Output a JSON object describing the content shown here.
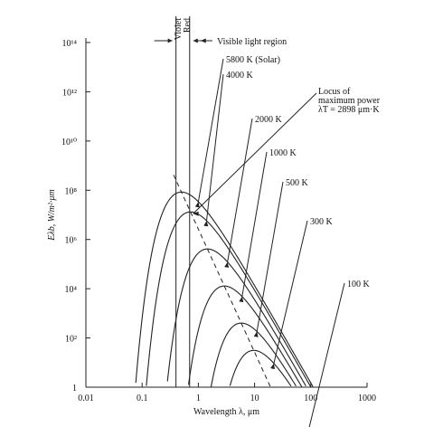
{
  "chart_data": {
    "type": "line",
    "title": "",
    "xlabel": "Wavelength λ, μm",
    "ylabel": "Eλb, W/m²·μm",
    "xscale": "log",
    "yscale": "log",
    "xlim": [
      0.01,
      1000
    ],
    "ylim": [
      1,
      100000000000000
    ],
    "grid": false,
    "x_ticks": [
      {
        "v": 0.01,
        "label": "0.01"
      },
      {
        "v": 0.1,
        "label": "0.1"
      },
      {
        "v": 1,
        "label": "1"
      },
      {
        "v": 10,
        "label": "10"
      },
      {
        "v": 100,
        "label": "100"
      },
      {
        "v": 1000,
        "label": "1000"
      }
    ],
    "y_ticks": [
      {
        "v": 1,
        "label": "1"
      },
      {
        "v": 100,
        "label": "10²"
      },
      {
        "v": 10000,
        "label": "10⁴"
      },
      {
        "v": 1000000,
        "label": "10⁶"
      },
      {
        "v": 100000000,
        "label": "10⁸"
      },
      {
        "v": 10000000000,
        "label": "10¹⁰"
      },
      {
        "v": 1000000000000,
        "label": "10¹²"
      },
      {
        "v": 100000000000000,
        "label": "10¹⁴"
      }
    ],
    "series": [
      {
        "name": "5800 K (Solar)",
        "temperature": 5800
      },
      {
        "name": "4000 K",
        "temperature": 4000
      },
      {
        "name": "2000 K",
        "temperature": 2000
      },
      {
        "name": "1000 K",
        "temperature": 1000
      },
      {
        "name": "500 K",
        "temperature": 500
      },
      {
        "name": "300 K",
        "temperature": 300
      },
      {
        "name": "100 K",
        "temperature": 100
      }
    ],
    "locus": {
      "text": [
        "Locus of",
        "maximum power",
        "λT = 2898 μm·K"
      ],
      "constant": 2898
    },
    "visible_region": {
      "violet": 0.4,
      "red": 0.7,
      "violet_label": "Violet",
      "red_label": "Red",
      "label": "Visible light region"
    }
  }
}
